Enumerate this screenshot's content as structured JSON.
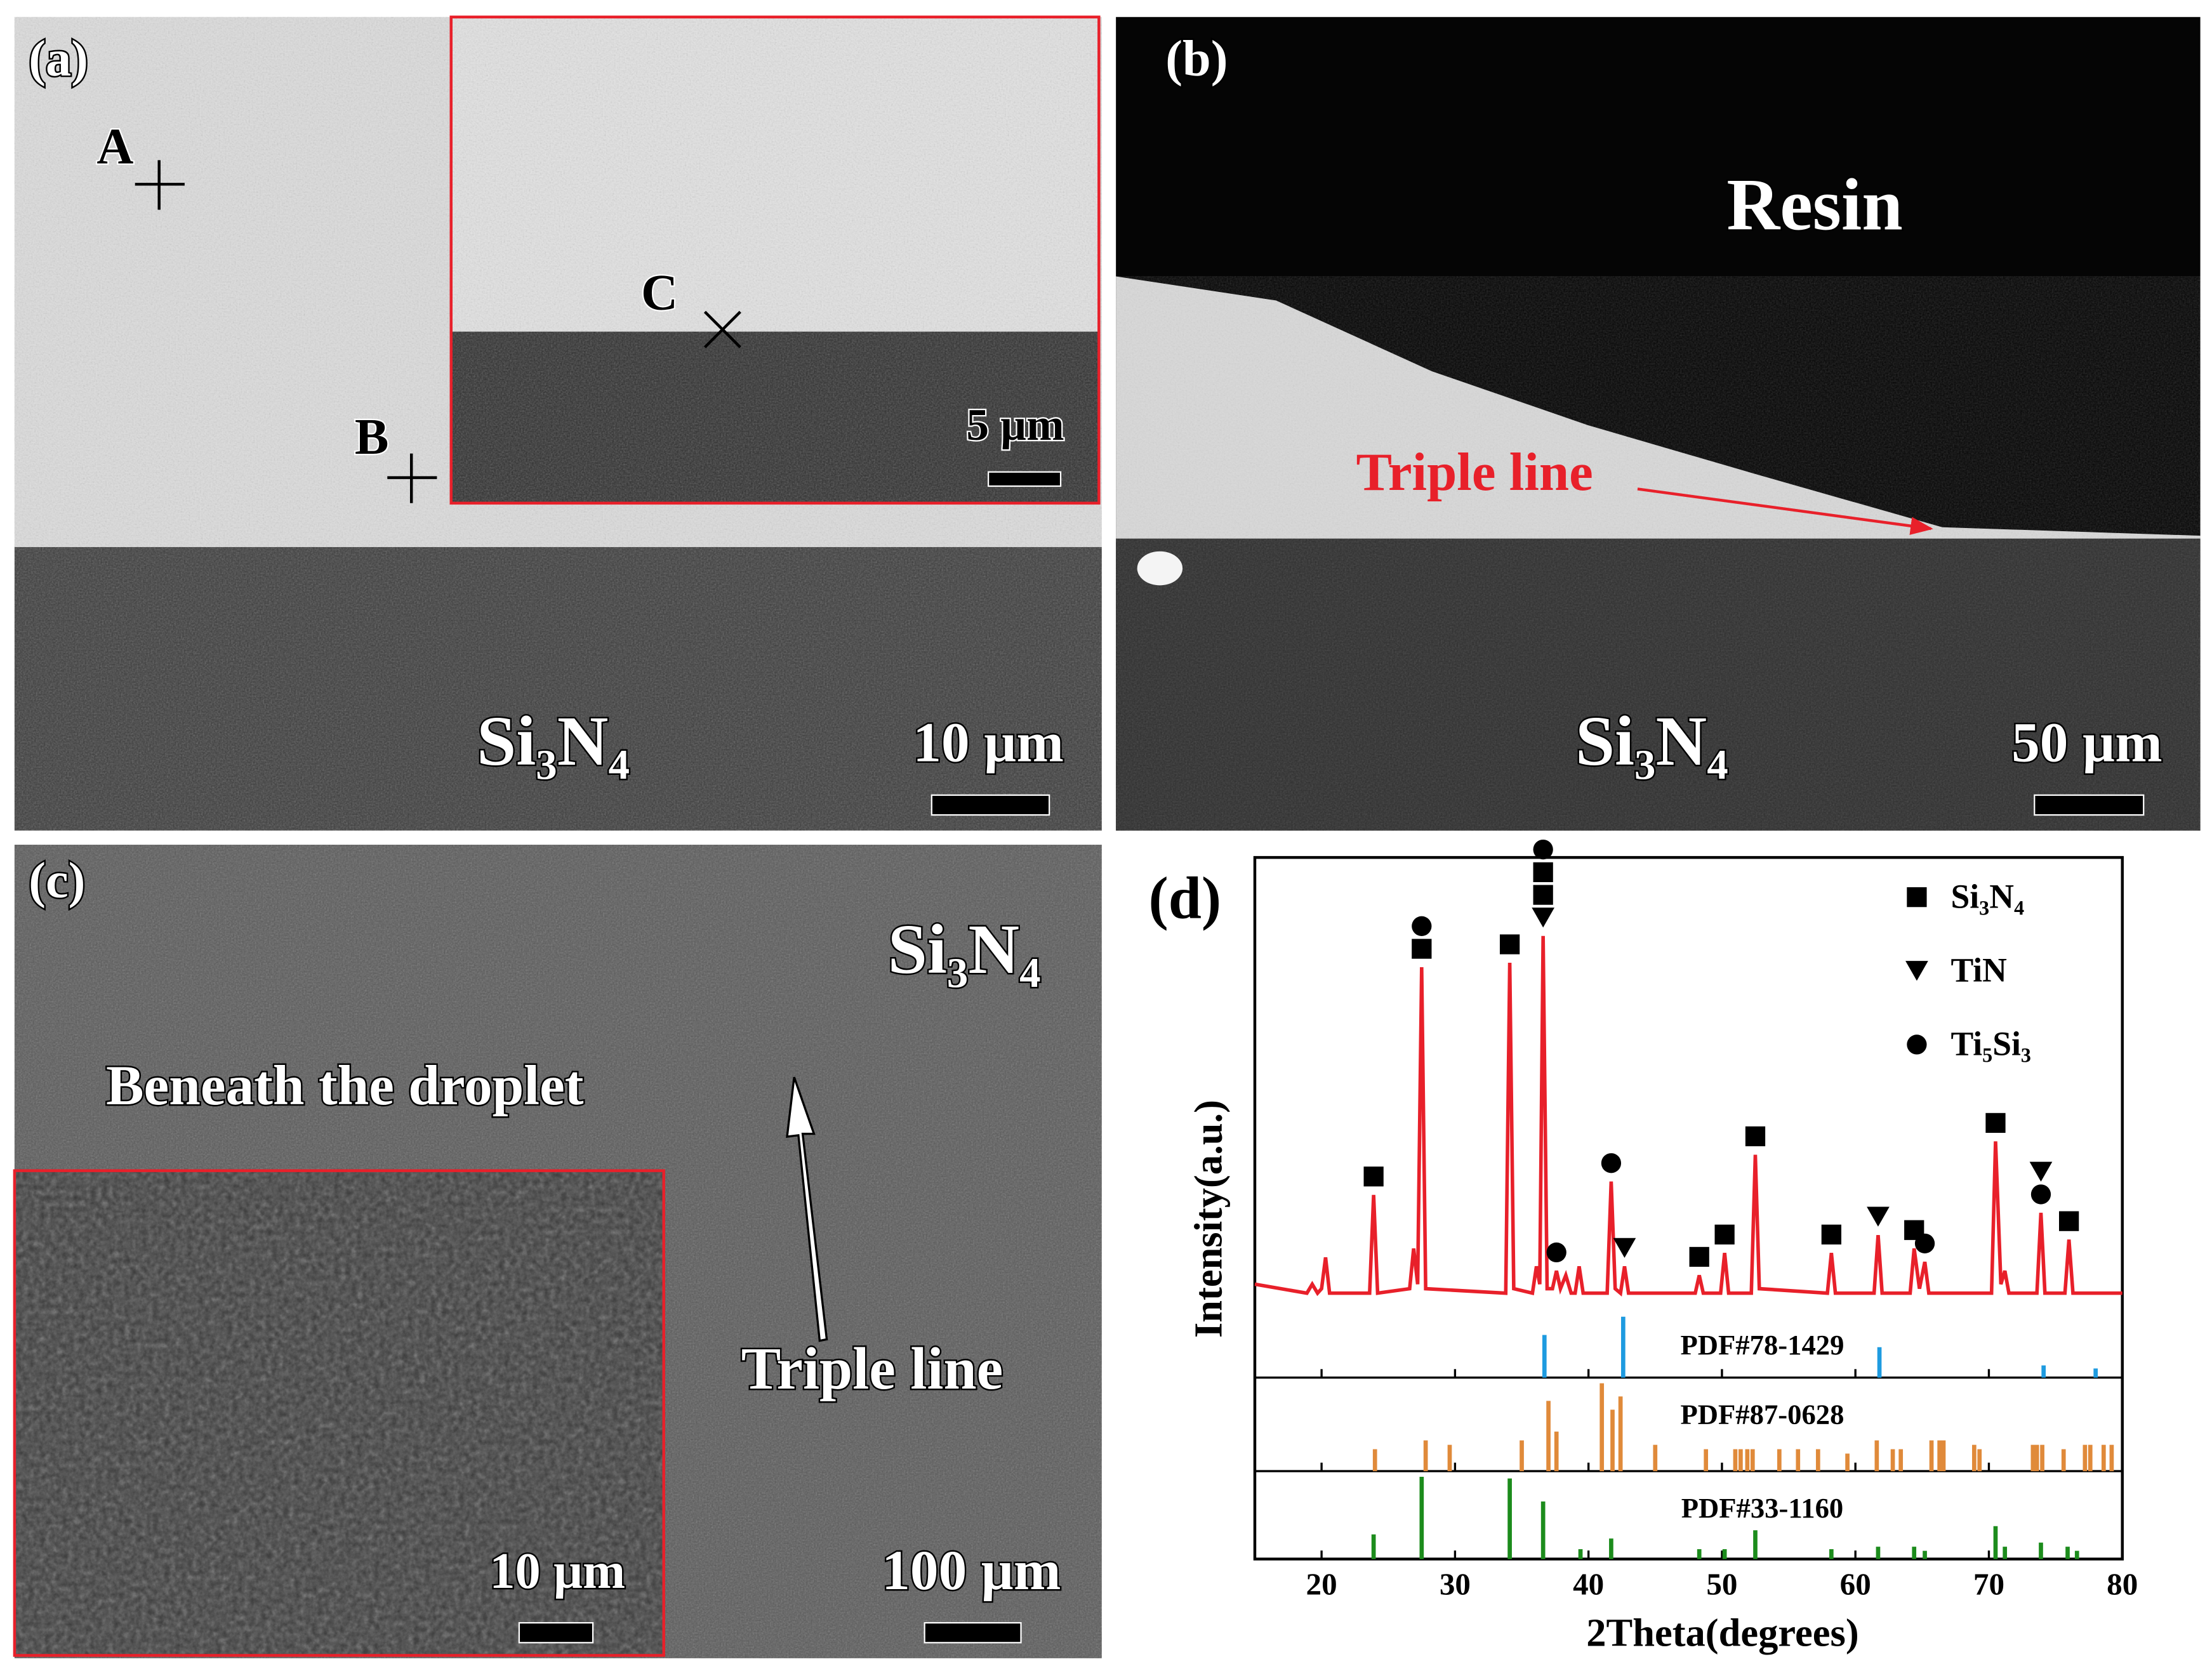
{
  "panels": {
    "a": {
      "label": "(a)",
      "points": [
        "A",
        "B",
        "C"
      ],
      "inset_scale": "5 µm",
      "scale": "10 µm",
      "substrate": "Si₃N₄"
    },
    "b": {
      "label": "(b)",
      "resin": "Resin",
      "triple_line": "Triple line",
      "substrate": "Si₃N₄",
      "scale": "50 µm"
    },
    "c": {
      "label": "(c)",
      "substrate": "Si₃N₄",
      "region": "Beneath the droplet",
      "triple_line": "Triple line",
      "inset_scale": "10 µm",
      "scale": "100 µm"
    },
    "d": {
      "label": "(d)"
    }
  },
  "chart_data": {
    "type": "line",
    "x_label": "2Theta(degrees)",
    "y_label": "Intensity(a.u.)",
    "color": "#e8202a",
    "xlim": [
      15,
      80
    ],
    "xticks": [
      20,
      30,
      40,
      50,
      60,
      70,
      80
    ],
    "ylim": [
      0,
      100
    ],
    "x": [
      15,
      18.9,
      19.3,
      19.7,
      20.0,
      20.3,
      20.6,
      23.6,
      23.9,
      24.2,
      26.6,
      26.9,
      27.2,
      27.5,
      27.8,
      33.8,
      34.1,
      34.4,
      35.8,
      36.1,
      36.35,
      36.6,
      36.9,
      37.3,
      37.6,
      37.9,
      38.3,
      38.7,
      39.0,
      39.3,
      39.6,
      41.4,
      41.7,
      42.0,
      42.4,
      42.7,
      43.0,
      48.0,
      48.3,
      48.6,
      49.9,
      50.2,
      50.5,
      52.2,
      52.5,
      52.8,
      57.9,
      58.2,
      58.5,
      61.4,
      61.7,
      62.0,
      64.1,
      64.4,
      64.8,
      65.2,
      65.5,
      70.2,
      70.5,
      70.9,
      71.2,
      71.5,
      73.6,
      73.9,
      74.2,
      75.7,
      76.0,
      76.3,
      80
    ],
    "values": [
      6,
      4,
      6,
      4,
      5,
      12,
      4,
      4,
      26,
      4,
      5,
      14,
      6,
      77,
      5,
      4,
      78,
      5,
      4,
      10,
      6,
      84,
      5,
      5,
      9,
      5,
      8,
      4,
      4,
      10,
      4,
      4,
      29,
      5,
      4,
      10,
      4,
      4,
      8,
      4,
      4,
      13,
      4,
      4,
      35,
      5,
      4,
      13,
      4,
      4,
      17,
      4,
      4,
      14,
      5,
      11,
      4,
      4,
      38,
      6,
      9,
      4,
      4,
      22,
      4,
      4,
      16,
      4,
      4
    ],
    "legend": [
      {
        "name": "Si₃N₄",
        "symbol": "square"
      },
      {
        "name": "TiN",
        "symbol": "triangle"
      },
      {
        "name": "Ti₅Si₃",
        "symbol": "circle"
      }
    ],
    "peak_markers": [
      {
        "x": 23.9,
        "phases": [
          0
        ]
      },
      {
        "x": 27.5,
        "phases": [
          0,
          2
        ]
      },
      {
        "x": 34.1,
        "phases": [
          0
        ]
      },
      {
        "x": 36.6,
        "phases": [
          1,
          0,
          0,
          2
        ]
      },
      {
        "x": 37.6,
        "phases": [
          2
        ]
      },
      {
        "x": 41.7,
        "phases": [
          2
        ]
      },
      {
        "x": 42.7,
        "phases": [
          1
        ]
      },
      {
        "x": 48.3,
        "phases": [
          0
        ]
      },
      {
        "x": 50.2,
        "phases": [
          0
        ]
      },
      {
        "x": 52.5,
        "phases": [
          0
        ]
      },
      {
        "x": 58.2,
        "phases": [
          0
        ]
      },
      {
        "x": 61.7,
        "phases": [
          1
        ]
      },
      {
        "x": 64.4,
        "phases": [
          0
        ]
      },
      {
        "x": 65.2,
        "phases": [
          2
        ]
      },
      {
        "x": 70.5,
        "phases": [
          0
        ]
      },
      {
        "x": 73.9,
        "phases": [
          2,
          1
        ]
      },
      {
        "x": 76.0,
        "phases": [
          0
        ]
      }
    ],
    "references": [
      {
        "name": "PDF#78-1429",
        "color": "#1e9be0",
        "x": [
          36.7,
          42.6,
          61.8,
          74.1,
          78.0
        ],
        "values": [
          70,
          100,
          50,
          20,
          15
        ]
      },
      {
        "name": "PDF#87-0628",
        "color": "#e08a3a",
        "x": [
          24.0,
          27.8,
          29.6,
          35.0,
          37.0,
          37.6,
          41.0,
          41.8,
          42.4,
          45.0,
          48.8,
          51.0,
          51.4,
          51.9,
          52.3,
          54.3,
          55.7,
          57.2,
          59.4,
          61.6,
          62.8,
          63.4,
          65.7,
          66.3,
          66.6,
          68.9,
          69.3,
          73.3,
          73.6,
          74.0,
          75.6,
          77.2,
          77.6,
          78.6,
          79.2
        ],
        "values": [
          25,
          35,
          30,
          35,
          80,
          45,
          100,
          70,
          85,
          30,
          25,
          25,
          25,
          25,
          25,
          25,
          25,
          25,
          20,
          35,
          25,
          25,
          35,
          35,
          35,
          30,
          25,
          30,
          30,
          30,
          25,
          30,
          30,
          30,
          30
        ]
      },
      {
        "name": "PDF#33-1160",
        "color": "#1c8c1c",
        "x": [
          23.9,
          27.5,
          34.1,
          36.6,
          39.4,
          41.7,
          48.3,
          50.2,
          52.5,
          58.2,
          61.7,
          64.4,
          65.2,
          70.5,
          71.2,
          73.9,
          75.9,
          76.6
        ],
        "values": [
          30,
          100,
          98,
          70,
          12,
          25,
          12,
          12,
          35,
          12,
          15,
          15,
          10,
          40,
          15,
          20,
          15,
          10
        ]
      }
    ]
  }
}
